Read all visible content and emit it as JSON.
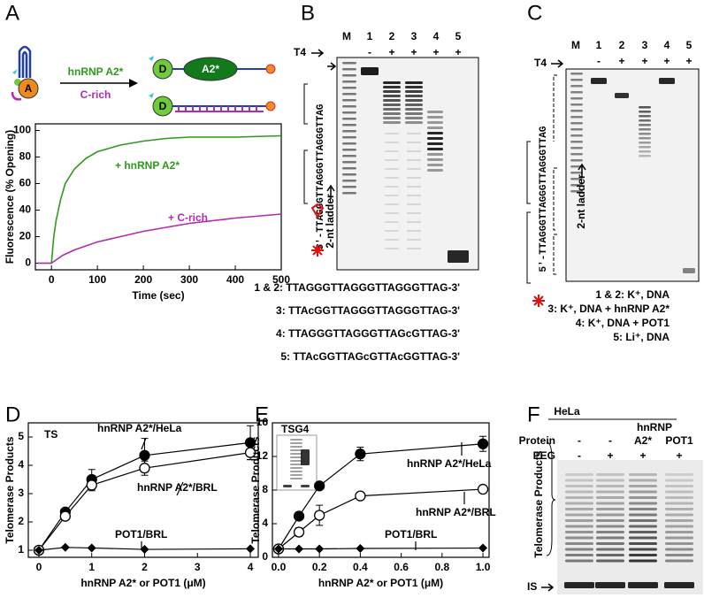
{
  "panel_labels": [
    "A",
    "B",
    "C",
    "D",
    "E",
    "F"
  ],
  "scheme_a": {
    "node_a": "A",
    "node_d": "D",
    "protein": "A2*",
    "arrow_top": "hnRNP A2*",
    "arrow_bottom": "C-rich"
  },
  "gel_b": {
    "lanes": [
      "M",
      "1",
      "2",
      "3",
      "4",
      "5"
    ],
    "t4_label": "T4",
    "t4_signs": [
      "-",
      "+",
      "+",
      "+",
      "+"
    ],
    "sequence": "5'-TTAGGGTTAGGGTTAGGGTTAG",
    "ladder": "2-nt ladder",
    "legend": [
      "1 & 2: TTAGGGTTAGGGTTAGGGTTAG-3'",
      "3: TTAcGGTTAGGGTTAGGGTTAG-3'",
      "4: TTAGGGTTAGGGTTAGcGTTAG-3'",
      "5: TTAcGGTTAGcGTTAcGGTTAG-3'"
    ]
  },
  "gel_c": {
    "lanes": [
      "M",
      "1",
      "2",
      "3",
      "4",
      "5"
    ],
    "t4_label": "T4",
    "t4_signs": [
      "-",
      "+",
      "+",
      "+",
      "+"
    ],
    "sequence": "5'-TTAGGGTTAGGGTTAGGGTTAG",
    "ladder": "2-nt ladder",
    "legend": [
      "1 & 2: K⁺, DNA",
      "3: K⁺, DNA + hnRNP A2*",
      "4: K⁺, DNA + POT1",
      "5: Li⁺, DNA"
    ]
  },
  "gel_f": {
    "cell": "HeLa",
    "group": "hnRNP",
    "protein_label": "Protein",
    "proteins": [
      "-",
      "-",
      "A2*",
      "POT1"
    ],
    "peg_label": "PEG",
    "peg_signs": [
      "-",
      "+",
      "+",
      "+"
    ],
    "products": "Telomerase Products",
    "is_label": "IS"
  },
  "chart_data": [
    {
      "type": "line",
      "xlabel": "Time (sec)",
      "ylabel": "Fluorescence (% Opening)",
      "xlim": [
        -35,
        500
      ],
      "ylim": [
        -5,
        105
      ],
      "xticks": [
        0,
        100,
        200,
        300,
        400,
        500
      ],
      "yticks": [
        0,
        20,
        40,
        60,
        80,
        100
      ],
      "series": [
        {
          "name": "+ hnRNP A2*",
          "color": "#2e9a1c",
          "x": [
            -30,
            0,
            5,
            10,
            20,
            30,
            50,
            75,
            100,
            150,
            200,
            250,
            300,
            400,
            500
          ],
          "values": [
            0,
            0,
            20,
            32,
            48,
            60,
            71,
            79,
            84,
            89,
            92,
            94,
            95,
            95,
            96
          ]
        },
        {
          "name": "+ C-rich",
          "color": "#b02cb0",
          "x": [
            -30,
            0,
            25,
            50,
            100,
            150,
            200,
            250,
            300,
            400,
            500
          ],
          "values": [
            0,
            0,
            6,
            10,
            16,
            20,
            24,
            27,
            30,
            34,
            37
          ]
        }
      ]
    },
    {
      "type": "scatter",
      "label": "TS",
      "xlabel": "hnRNP A2* or POT1 (μM)",
      "ylabel": "Telomerase Products",
      "xlim": [
        -0.2,
        4.15
      ],
      "ylim": [
        0.75,
        5.5
      ],
      "xticks": [
        0,
        1,
        2,
        3,
        4
      ],
      "yticks": [
        1,
        2,
        3,
        4,
        5
      ],
      "series": [
        {
          "name": "hnRNP A2*/HeLa",
          "marker": "filled",
          "x": [
            0,
            0.5,
            1,
            2,
            4
          ],
          "values": [
            1,
            2.35,
            3.5,
            4.35,
            4.8
          ],
          "errors": [
            null,
            0.1,
            0.35,
            0.6,
            0.6
          ]
        },
        {
          "name": "hnRNP A2*/BRL",
          "marker": "open",
          "x": [
            0,
            0.5,
            1,
            2,
            4
          ],
          "values": [
            1,
            2.2,
            3.3,
            3.9,
            4.45
          ],
          "errors": [
            null,
            0.1,
            0.2,
            0.25,
            0.25
          ]
        },
        {
          "name": "POT1/BRL",
          "marker": "diamond",
          "x": [
            0,
            0.5,
            1,
            2,
            4
          ],
          "values": [
            1,
            1.1,
            1.08,
            1.03,
            1.05
          ],
          "errors": [
            null,
            null,
            null,
            null,
            null
          ]
        }
      ]
    },
    {
      "type": "scatter",
      "label": "TSG4",
      "xlabel": "hnRNP A2* or POT1 (μM)",
      "ylabel": "Telomerase Products",
      "xlim": [
        -0.03,
        1.03
      ],
      "ylim": [
        0,
        16
      ],
      "xticks": [
        {
          "value": 0,
          "label": "0.0"
        },
        {
          "value": 0.2,
          "label": "0.2"
        },
        {
          "value": 0.4,
          "label": "0.4"
        },
        {
          "value": 0.6,
          "label": "0.6"
        },
        {
          "value": 0.8,
          "label": "0.8"
        },
        {
          "value": 1,
          "label": "1.0"
        }
      ],
      "yticks": [
        0,
        4,
        8,
        12,
        16
      ],
      "series": [
        {
          "name": "hnRNP A2*/HeLa",
          "marker": "filled",
          "x": [
            0,
            0.1,
            0.2,
            0.4,
            1
          ],
          "values": [
            1,
            4.9,
            8.5,
            12.3,
            13.5
          ],
          "errors": [
            null,
            null,
            null,
            0.8,
            0.9
          ]
        },
        {
          "name": "hnRNP A2*/BRL",
          "marker": "open",
          "x": [
            0,
            0.1,
            0.2,
            0.4,
            1
          ],
          "values": [
            1,
            3,
            5,
            7.3,
            8.1
          ],
          "errors": [
            null,
            0.5,
            1.2,
            null,
            null
          ]
        },
        {
          "name": "POT1/BRL",
          "marker": "diamond",
          "x": [
            0,
            0.1,
            0.2,
            0.4,
            1
          ],
          "values": [
            1,
            1,
            1,
            1.05,
            1.1
          ],
          "errors": [
            null,
            null,
            null,
            null,
            null
          ]
        }
      ]
    }
  ]
}
